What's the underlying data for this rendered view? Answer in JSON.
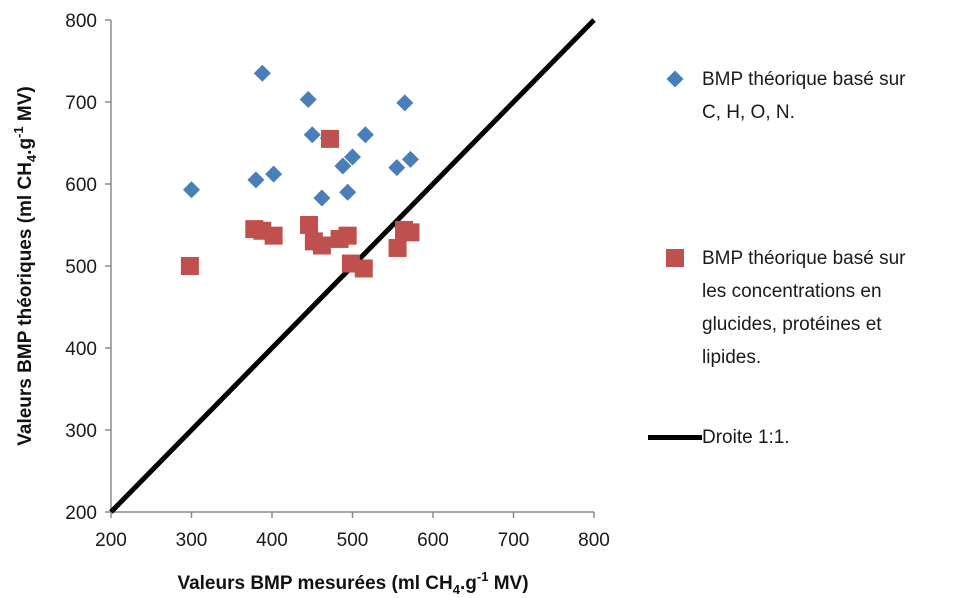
{
  "chart_data": {
    "type": "scatter",
    "title": "",
    "xlabel_parts": {
      "a": "Valeurs BMP mesurées (ml CH",
      "sub": "4",
      "b": ".g",
      "sup": "-1",
      "c": " MV)"
    },
    "ylabel_parts": {
      "a": "Valeurs BMP théoriques (ml CH",
      "sub": "4",
      "b": ".g",
      "sup": "-1",
      "c": " MV)"
    },
    "xlim": [
      200,
      800
    ],
    "ylim": [
      200,
      800
    ],
    "x_ticks": [
      200,
      300,
      400,
      500,
      600,
      700,
      800
    ],
    "y_ticks": [
      200,
      300,
      400,
      500,
      600,
      700,
      800
    ],
    "grid": false,
    "legend_position": "right",
    "series": [
      {
        "name": "BMP théorique basé sur\nC, H, O, N.",
        "marker": "diamond",
        "color": "#4a7ebb",
        "points": [
          [
            300,
            593
          ],
          [
            380,
            605
          ],
          [
            388,
            735
          ],
          [
            402,
            612
          ],
          [
            445,
            703
          ],
          [
            450,
            660
          ],
          [
            462,
            583
          ],
          [
            470,
            656
          ],
          [
            488,
            622
          ],
          [
            494,
            590
          ],
          [
            500,
            633
          ],
          [
            516,
            660
          ],
          [
            555,
            620
          ],
          [
            565,
            699
          ],
          [
            572,
            630
          ]
        ]
      },
      {
        "name": "BMP théorique basé sur\nles concentrations en\nglucides, protéines et\nlipides.",
        "marker": "square",
        "color": "#c0504d",
        "points": [
          [
            298,
            500
          ],
          [
            378,
            545
          ],
          [
            388,
            543
          ],
          [
            402,
            537
          ],
          [
            446,
            550
          ],
          [
            452,
            530
          ],
          [
            462,
            525
          ],
          [
            472,
            655
          ],
          [
            484,
            533
          ],
          [
            494,
            537
          ],
          [
            498,
            503
          ],
          [
            514,
            497
          ],
          [
            556,
            522
          ],
          [
            564,
            544
          ],
          [
            572,
            541
          ]
        ]
      },
      {
        "name": "Droite 1:1.",
        "marker": "line",
        "color": "#000000",
        "points": [
          [
            200,
            200
          ],
          [
            800,
            800
          ]
        ]
      }
    ]
  }
}
